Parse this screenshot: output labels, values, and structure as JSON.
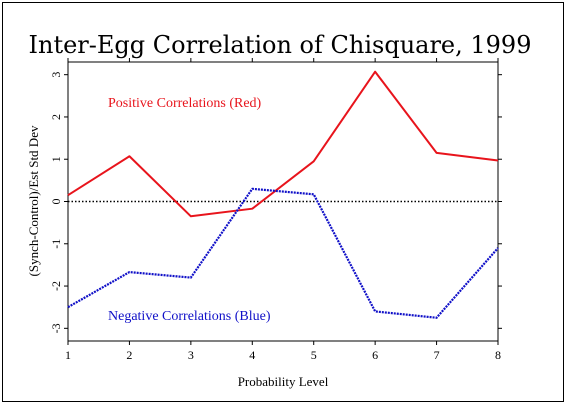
{
  "chart_data": {
    "type": "line",
    "title": "Inter-Egg Correlation of Chisquare, 1999",
    "xlabel": "Probability Level",
    "ylabel": "(Synch-Control)/Est Std Dev",
    "x": [
      1,
      2,
      3,
      4,
      5,
      6,
      7,
      8
    ],
    "xlim": [
      1,
      8
    ],
    "ylim": [
      -3.3,
      3.3
    ],
    "xticks": [
      "1",
      "2",
      "3",
      "4",
      "5",
      "6",
      "7",
      "8"
    ],
    "yticks": [
      -3,
      -2,
      -1,
      0,
      1,
      2,
      3
    ],
    "ytick_labels": [
      "-3",
      "-2",
      "-1",
      "0",
      "1",
      "2",
      "3"
    ],
    "reference_line": 0,
    "series": [
      {
        "label": "Positive Correlations (Red)",
        "color": "#e8141c",
        "values": [
          0.15,
          1.07,
          -0.35,
          -0.17,
          0.95,
          3.07,
          1.15,
          0.97
        ]
      },
      {
        "label": "Negative Correlations (Blue)",
        "color": "#1010c8",
        "values": [
          -2.5,
          -1.67,
          -1.8,
          0.3,
          0.17,
          -2.6,
          -2.75,
          -1.1
        ]
      }
    ],
    "grid": false
  }
}
